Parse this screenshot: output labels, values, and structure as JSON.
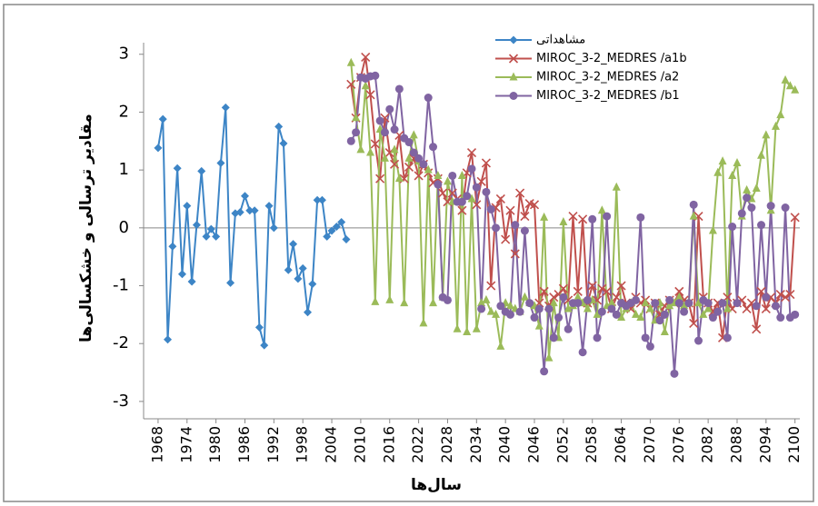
{
  "chart_data": {
    "type": "line",
    "x_label": "سال‌ها",
    "y_label": "مقادیر ترسالی و خشکسالی‌ها",
    "xlim": [
      1965,
      2101
    ],
    "ylim": [
      -3.3,
      3.2
    ],
    "xticks": [
      1968,
      1974,
      1980,
      1986,
      1992,
      1998,
      2004,
      2010,
      2016,
      2022,
      2028,
      2034,
      2040,
      2046,
      2052,
      2058,
      2064,
      2070,
      2076,
      2082,
      2088,
      2094,
      2100
    ],
    "yticks": [
      -3,
      -2,
      -1,
      0,
      1,
      2,
      3
    ],
    "x": [
      1968,
      1969,
      1970,
      1971,
      1972,
      1973,
      1974,
      1975,
      1976,
      1977,
      1978,
      1979,
      1980,
      1981,
      1982,
      1983,
      1984,
      1985,
      1986,
      1987,
      1988,
      1989,
      1990,
      1991,
      1992,
      1993,
      1994,
      1995,
      1996,
      1997,
      1998,
      1999,
      2000,
      2001,
      2002,
      2003,
      2004,
      2005,
      2006,
      2007,
      2008,
      2009,
      2010,
      2011,
      2012,
      2013,
      2014,
      2015,
      2016,
      2017,
      2018,
      2019,
      2020,
      2021,
      2022,
      2023,
      2024,
      2025,
      2026,
      2027,
      2028,
      2029,
      2030,
      2031,
      2032,
      2033,
      2034,
      2035,
      2036,
      2037,
      2038,
      2039,
      2040,
      2041,
      2042,
      2043,
      2044,
      2045,
      2046,
      2047,
      2048,
      2049,
      2050,
      2051,
      2052,
      2053,
      2054,
      2055,
      2056,
      2057,
      2058,
      2059,
      2060,
      2061,
      2062,
      2063,
      2064,
      2065,
      2066,
      2067,
      2068,
      2069,
      2070,
      2071,
      2072,
      2073,
      2074,
      2075,
      2076,
      2077,
      2078,
      2079,
      2080,
      2081,
      2082,
      2083,
      2084,
      2085,
      2086,
      2087,
      2088,
      2089,
      2090,
      2091,
      2092,
      2093,
      2094,
      2095,
      2096,
      2097,
      2098,
      2099,
      2100
    ],
    "series": [
      {
        "name": "مشاهداتی",
        "color": "#3d85c6",
        "marker": "diamond",
        "values": [
          1.38,
          1.88,
          -1.93,
          -0.32,
          1.03,
          -0.8,
          0.38,
          -0.93,
          0.05,
          0.98,
          -0.15,
          -0.02,
          -0.15,
          1.12,
          2.08,
          -0.95,
          0.25,
          0.27,
          0.55,
          0.3,
          0.3,
          -1.72,
          -2.03,
          0.38,
          0.0,
          1.75,
          1.46,
          -0.73,
          -0.28,
          -0.88,
          -0.7,
          -1.46,
          -0.97,
          0.48,
          0.48,
          -0.15,
          -0.05,
          0.02,
          0.1,
          -0.2,
          null,
          null,
          null,
          null,
          null,
          null,
          null,
          null,
          null,
          null,
          null,
          null,
          null,
          null,
          null,
          null,
          null,
          null,
          null,
          null,
          null,
          null,
          null,
          null,
          null,
          null,
          null,
          null,
          null,
          null,
          null,
          null,
          null,
          null,
          null,
          null,
          null,
          null,
          null,
          null,
          null,
          null,
          null,
          null,
          null,
          null,
          null,
          null,
          null,
          null,
          null,
          null,
          null,
          null,
          null,
          null,
          null,
          null,
          null,
          null,
          null,
          null,
          null,
          null,
          null,
          null,
          null,
          null,
          null,
          null,
          null,
          null,
          null,
          null,
          null,
          null,
          null,
          null,
          null,
          null,
          null,
          null,
          null,
          null,
          null,
          null,
          null,
          null,
          null,
          null,
          null,
          null,
          null
        ]
      },
      {
        "name": "MIROC_3-2_MEDRES /a1b",
        "color": "#c0504d",
        "marker": "cross",
        "values": [
          null,
          null,
          null,
          null,
          null,
          null,
          null,
          null,
          null,
          null,
          null,
          null,
          null,
          null,
          null,
          null,
          null,
          null,
          null,
          null,
          null,
          null,
          null,
          null,
          null,
          null,
          null,
          null,
          null,
          null,
          null,
          null,
          null,
          null,
          null,
          null,
          null,
          null,
          null,
          null,
          2.48,
          1.9,
          2.6,
          2.95,
          2.3,
          1.45,
          0.85,
          1.9,
          1.3,
          1.1,
          1.6,
          0.85,
          1.05,
          1.2,
          0.9,
          1.1,
          0.95,
          0.78,
          0.85,
          0.6,
          0.45,
          0.6,
          0.5,
          0.3,
          0.95,
          1.3,
          0.4,
          0.8,
          1.12,
          -1.0,
          0.35,
          0.5,
          -0.2,
          0.3,
          -0.45,
          0.6,
          0.2,
          0.42,
          0.4,
          -1.3,
          -1.1,
          -1.35,
          -1.2,
          -1.15,
          -1.05,
          -1.25,
          0.2,
          -1.1,
          0.15,
          -1.3,
          -1.0,
          -1.25,
          -1.05,
          -1.1,
          -1.4,
          -1.2,
          -1.0,
          -1.3,
          -1.4,
          -1.2,
          -1.3,
          -1.25,
          -1.4,
          -1.3,
          -1.5,
          -1.35,
          -1.25,
          -1.3,
          -1.1,
          -1.25,
          -1.3,
          -1.65,
          0.2,
          -1.2,
          -1.3,
          -1.45,
          -1.3,
          -1.9,
          -1.2,
          -1.4,
          -1.3,
          -1.25,
          -1.4,
          -1.3,
          -1.75,
          -1.1,
          -1.4,
          -1.2,
          -1.3,
          -1.15,
          -1.2,
          -1.15,
          0.18
        ]
      },
      {
        "name": "MIROC_3-2_MEDRES /a2",
        "color": "#9bbb59",
        "marker": "triangle",
        "values": [
          null,
          null,
          null,
          null,
          null,
          null,
          null,
          null,
          null,
          null,
          null,
          null,
          null,
          null,
          null,
          null,
          null,
          null,
          null,
          null,
          null,
          null,
          null,
          null,
          null,
          null,
          null,
          null,
          null,
          null,
          null,
          null,
          null,
          null,
          null,
          null,
          null,
          null,
          null,
          null,
          2.85,
          1.9,
          1.35,
          2.45,
          1.3,
          -1.28,
          1.7,
          1.2,
          -1.25,
          1.35,
          0.85,
          -1.3,
          1.2,
          1.6,
          1.15,
          -1.65,
          1.0,
          -1.3,
          0.9,
          -1.2,
          0.8,
          0.45,
          -1.75,
          0.9,
          -1.8,
          0.5,
          -1.75,
          -1.3,
          -1.25,
          -1.45,
          -1.5,
          -2.05,
          -1.3,
          -1.35,
          -1.4,
          -1.45,
          -1.2,
          -1.3,
          -1.35,
          -1.7,
          0.18,
          -2.25,
          -1.3,
          -1.9,
          0.1,
          -1.4,
          -1.35,
          -1.2,
          -1.3,
          -1.4,
          -1.25,
          -1.5,
          0.3,
          -1.35,
          -1.3,
          0.7,
          -1.55,
          -1.4,
          -1.3,
          -1.5,
          -1.55,
          -1.3,
          -1.4,
          -1.6,
          -1.3,
          -1.8,
          -1.35,
          -1.3,
          -1.2,
          -1.35,
          -1.3,
          0.2,
          -1.3,
          -1.5,
          -1.4,
          -0.05,
          0.95,
          1.15,
          -1.4,
          0.9,
          1.12,
          0.2,
          0.65,
          0.5,
          0.68,
          1.25,
          1.6,
          0.3,
          1.75,
          1.95,
          2.55,
          2.45,
          2.38
        ]
      },
      {
        "name": "MIROC_3-2_MEDRES /b1",
        "color": "#8064a2",
        "marker": "circle",
        "values": [
          null,
          null,
          null,
          null,
          null,
          null,
          null,
          null,
          null,
          null,
          null,
          null,
          null,
          null,
          null,
          null,
          null,
          null,
          null,
          null,
          null,
          null,
          null,
          null,
          null,
          null,
          null,
          null,
          null,
          null,
          null,
          null,
          null,
          null,
          null,
          null,
          null,
          null,
          null,
          null,
          1.5,
          1.65,
          2.6,
          2.58,
          2.62,
          2.63,
          1.85,
          1.65,
          2.05,
          1.7,
          2.4,
          1.55,
          1.48,
          1.3,
          1.2,
          1.1,
          2.25,
          1.4,
          0.75,
          -1.2,
          -1.25,
          0.9,
          0.45,
          0.45,
          0.55,
          1.02,
          0.7,
          -1.4,
          0.62,
          0.32,
          0.0,
          -1.35,
          -1.45,
          -1.5,
          0.05,
          -1.45,
          -0.05,
          -1.3,
          -1.55,
          -1.4,
          -2.48,
          -1.4,
          -1.9,
          -1.55,
          -1.2,
          -1.75,
          -1.3,
          -1.3,
          -2.15,
          -1.25,
          0.15,
          -1.9,
          -1.45,
          0.2,
          -1.4,
          -1.5,
          -1.3,
          -1.35,
          -1.3,
          -1.25,
          0.18,
          -1.9,
          -2.05,
          -1.3,
          -1.6,
          -1.5,
          -1.25,
          -2.52,
          -1.3,
          -1.45,
          -1.3,
          0.4,
          -1.95,
          -1.25,
          -1.3,
          -1.55,
          -1.45,
          -1.3,
          -1.9,
          0.02,
          -1.3,
          0.25,
          0.52,
          0.35,
          -1.35,
          0.05,
          -1.2,
          0.38,
          -1.35,
          -1.55,
          0.35,
          -1.55,
          -1.5
        ]
      }
    ]
  }
}
